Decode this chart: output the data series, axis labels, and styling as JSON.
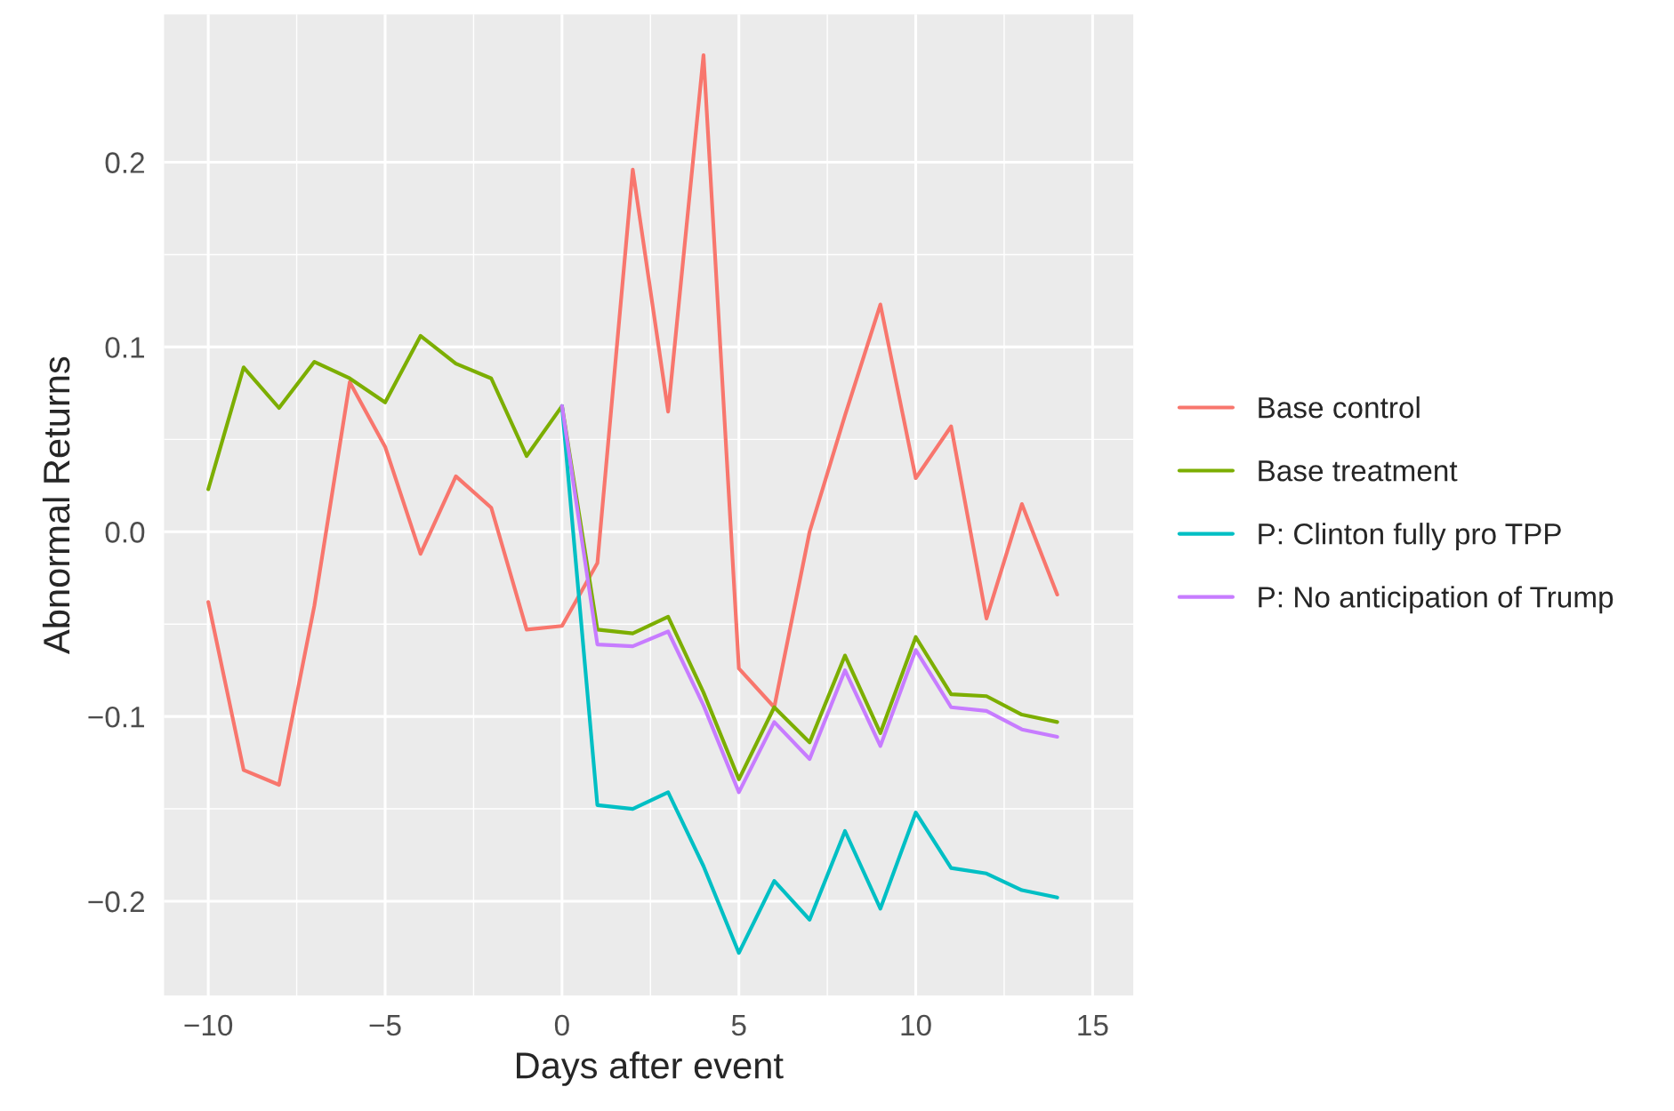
{
  "chart_data": {
    "type": "line",
    "xlabel": "Days after event",
    "ylabel": "Abnormal Returns",
    "x": [
      -10,
      -9,
      -8,
      -7,
      -6,
      -5,
      -4,
      -3,
      -2,
      -1,
      0,
      1,
      2,
      3,
      4,
      5,
      6,
      7,
      8,
      9,
      10,
      11,
      12,
      13,
      14
    ],
    "series": [
      {
        "name": "Base control",
        "color": "#f8766d",
        "values": [
          -0.038,
          -0.129,
          -0.137,
          -0.04,
          0.081,
          0.046,
          -0.012,
          0.03,
          0.013,
          -0.053,
          -0.051,
          -0.017,
          0.196,
          0.065,
          0.258,
          -0.074,
          -0.095,
          0.0,
          0.063,
          0.123,
          0.029,
          0.057,
          -0.047,
          0.015,
          -0.034
        ]
      },
      {
        "name": "Base treatment",
        "color": "#7cae00",
        "values": [
          0.023,
          0.089,
          0.067,
          0.092,
          0.083,
          0.07,
          0.106,
          0.091,
          0.083,
          0.041,
          0.068,
          -0.053,
          -0.055,
          -0.046,
          -0.087,
          -0.134,
          -0.095,
          -0.114,
          -0.067,
          -0.109,
          -0.057,
          -0.088,
          -0.089,
          -0.099,
          -0.103
        ]
      },
      {
        "name": "P: Clinton fully pro TPP",
        "color": "#00bfc4",
        "values": [
          null,
          null,
          null,
          null,
          null,
          null,
          null,
          null,
          null,
          null,
          0.068,
          -0.148,
          -0.15,
          -0.141,
          -0.181,
          -0.228,
          -0.189,
          -0.21,
          -0.162,
          -0.204,
          -0.152,
          -0.182,
          -0.185,
          -0.194,
          -0.198
        ]
      },
      {
        "name": "P: No anticipation of Trump",
        "color": "#c77cff",
        "values": [
          null,
          null,
          null,
          null,
          null,
          null,
          null,
          null,
          null,
          null,
          0.068,
          -0.061,
          -0.062,
          -0.054,
          -0.094,
          -0.141,
          -0.103,
          -0.123,
          -0.075,
          -0.116,
          -0.064,
          -0.095,
          -0.097,
          -0.107,
          -0.111
        ]
      }
    ],
    "xlim": [
      -11.25,
      16.15
    ],
    "ylim": [
      -0.251,
      0.28
    ],
    "xticks": [
      {
        "value": -10,
        "label": "−10"
      },
      {
        "value": -5,
        "label": "−5"
      },
      0,
      5,
      10,
      15
    ],
    "yticks": [
      {
        "value": -0.2,
        "label": "−0.2"
      },
      {
        "value": -0.1,
        "label": "−0.1"
      },
      {
        "value": 0.0,
        "label": "0.0"
      },
      0.1,
      0.2
    ],
    "grid": true,
    "legend": "right",
    "line_style": "solid",
    "marker": "none"
  }
}
